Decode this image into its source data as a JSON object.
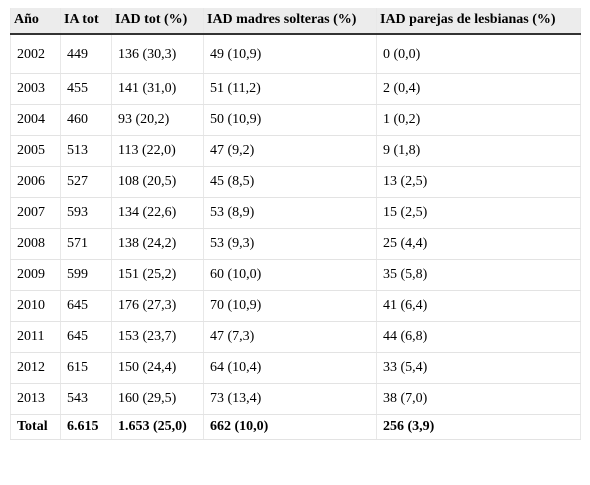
{
  "table": {
    "headers": [
      "Año",
      "IA tot",
      "IAD tot (%)",
      "IAD madres solteras (%)",
      "IAD parejas de lesbianas (%)"
    ],
    "rows": [
      [
        "2002",
        "449",
        "136 (30,3)",
        "49 (10,9)",
        "0 (0,0)"
      ],
      [
        "2003",
        "455",
        "141 (31,0)",
        "51 (11,2)",
        "2 (0,4)"
      ],
      [
        "2004",
        "460",
        "93 (20,2)",
        "50 (10,9)",
        "1 (0,2)"
      ],
      [
        "2005",
        "513",
        "113 (22,0)",
        "47 (9,2)",
        "9 (1,8)"
      ],
      [
        "2006",
        "527",
        "108 (20,5)",
        "45 (8,5)",
        "13 (2,5)"
      ],
      [
        "2007",
        "593",
        "134 (22,6)",
        "53 (8,9)",
        "15 (2,5)"
      ],
      [
        "2008",
        "571",
        "138 (24,2)",
        "53 (9,3)",
        "25 (4,4)"
      ],
      [
        "2009",
        "599",
        "151 (25,2)",
        "60 (10,0)",
        "35 (5,8)"
      ],
      [
        "2010",
        "645",
        "176 (27,3)",
        "70 (10,9)",
        "41 (6,4)"
      ],
      [
        "2011",
        "645",
        "153 (23,7)",
        "47 (7,3)",
        "44 (6,8)"
      ],
      [
        "2012",
        "615",
        "150 (24,4)",
        "64 (10,4)",
        "33 (5,4)"
      ],
      [
        "2013",
        "543",
        "160 (29,5)",
        "73 (13,4)",
        "38 (7,0)"
      ]
    ],
    "total": [
      "Total",
      "6.615",
      "1.653 (25,0)",
      "662 (10,0)",
      "256 (3,9)"
    ]
  }
}
